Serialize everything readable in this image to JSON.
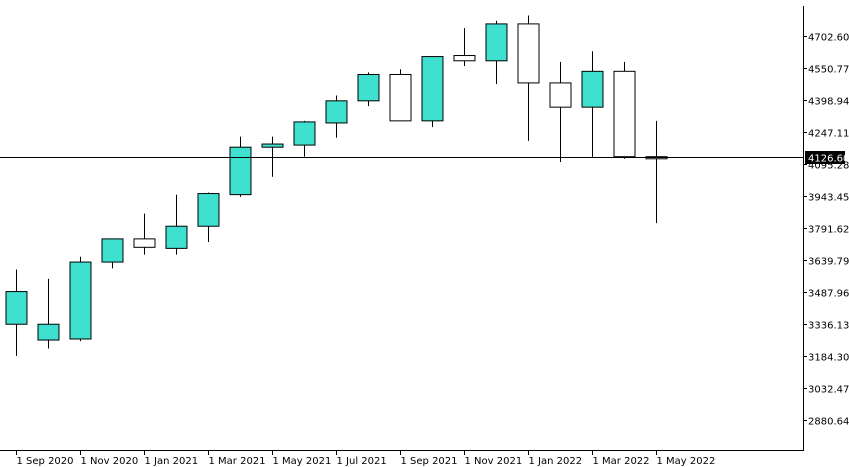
{
  "chart_data": {
    "type": "candlestick",
    "timeframe": "monthly",
    "x_tick_labels": [
      "1 Sep 2020",
      "1 Nov 2020",
      "1 Jan 2021",
      "1 Mar 2021",
      "1 May 2021",
      "1 Jul 2021",
      "1 Sep 2021",
      "1 Nov 2021",
      "1 Jan 2022",
      "1 Mar 2022",
      "1 May 2022"
    ],
    "y_tick_labels": [
      "4702.60",
      "4550.77",
      "4398.94",
      "4247.11",
      "4095.28",
      "3943.45",
      "3791.62",
      "3639.79",
      "3487.96",
      "3336.13",
      "3184.30",
      "3032.47",
      "2880.64"
    ],
    "ylim": [
      2735,
      4790
    ],
    "current_price": 4126.6,
    "current_price_label": "4126.60",
    "colors": {
      "bullish_body": "#40e0d0",
      "bearish_body": "#ffffff",
      "outline": "#000000",
      "price_line": "#000000"
    },
    "candles": [
      {
        "date": "2020-08",
        "open": 3335,
        "high": 3595,
        "low": 3185,
        "close": 3490
      },
      {
        "date": "2020-09",
        "open": 3260,
        "high": 3550,
        "low": 3220,
        "close": 3335
      },
      {
        "date": "2020-10",
        "open": 3265,
        "high": 3655,
        "low": 3255,
        "close": 3630
      },
      {
        "date": "2020-11",
        "open": 3630,
        "high": 3740,
        "low": 3600,
        "close": 3740
      },
      {
        "date": "2020-12",
        "open": 3740,
        "high": 3860,
        "low": 3665,
        "close": 3700
      },
      {
        "date": "2021-01",
        "open": 3695,
        "high": 3950,
        "low": 3665,
        "close": 3800
      },
      {
        "date": "2021-02",
        "open": 3800,
        "high": 3960,
        "low": 3725,
        "close": 3955
      },
      {
        "date": "2021-03",
        "open": 3950,
        "high": 4225,
        "low": 3940,
        "close": 4175
      },
      {
        "date": "2021-04",
        "open": 4175,
        "high": 4225,
        "low": 4035,
        "close": 4190
      },
      {
        "date": "2021-05",
        "open": 4185,
        "high": 4300,
        "low": 4130,
        "close": 4295
      },
      {
        "date": "2021-06",
        "open": 4290,
        "high": 4420,
        "low": 4220,
        "close": 4395
      },
      {
        "date": "2021-07",
        "open": 4395,
        "high": 4530,
        "low": 4370,
        "close": 4520
      },
      {
        "date": "2021-08",
        "open": 4520,
        "high": 4545,
        "low": 4300,
        "close": 4300
      },
      {
        "date": "2021-09",
        "open": 4300,
        "high": 4605,
        "low": 4270,
        "close": 4605
      },
      {
        "date": "2021-10",
        "open": 4610,
        "high": 4740,
        "low": 4560,
        "close": 4585
      },
      {
        "date": "2021-11",
        "open": 4585,
        "high": 4775,
        "low": 4475,
        "close": 4760
      },
      {
        "date": "2021-12",
        "open": 4760,
        "high": 4800,
        "low": 4205,
        "close": 4480
      },
      {
        "date": "2022-01",
        "open": 4480,
        "high": 4580,
        "low": 4105,
        "close": 4365
      },
      {
        "date": "2022-02",
        "open": 4365,
        "high": 4630,
        "low": 4125,
        "close": 4535
      },
      {
        "date": "2022-03",
        "open": 4535,
        "high": 4580,
        "low": 4120,
        "close": 4130
      },
      {
        "date": "2022-04",
        "open": 4130,
        "high": 4300,
        "low": 3815,
        "close": 4120
      }
    ]
  }
}
